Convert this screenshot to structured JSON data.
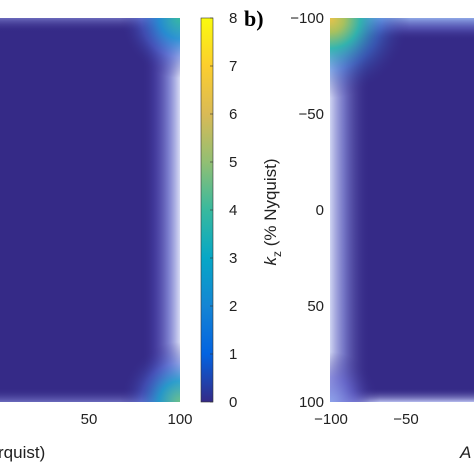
{
  "chart_data": [
    {
      "type": "heatmap",
      "panel": "",
      "xlabel": "k_y (% Nyquist)",
      "xlabel_visible": "rquist)",
      "ylabel": "",
      "x_ticks": [
        "50",
        "100"
      ],
      "xlim": [
        -100,
        100
      ],
      "ylim": [
        -100,
        100
      ],
      "value_description": "uniform low value (~0.5) in the interior; value rises toward the right edge, highest in the top-right and bottom-right corners",
      "interior_value": 0.5,
      "corner_values": {
        "top_right": 3.0,
        "bottom_right": 3.0
      },
      "colorbar": {
        "min": 0,
        "max": 8,
        "ticks": [
          "0",
          "1",
          "2",
          "3",
          "4",
          "5",
          "6",
          "7",
          "8"
        ],
        "colormap": "parula"
      }
    },
    {
      "type": "heatmap",
      "panel": "b)",
      "xlabel": "",
      "ylabel_main": "k",
      "ylabel_sub": "z",
      "ylabel_rest": " (% Nyquist)",
      "x_ticks": [
        "−100",
        "−50"
      ],
      "y_ticks": [
        "−100",
        "−50",
        "0",
        "50",
        "100"
      ],
      "xlim": [
        -100,
        100
      ],
      "ylim": [
        -100,
        100
      ],
      "partial_label": "A",
      "value_description": "uniform low value in the interior; value rises toward the top-left corner (up to ~6) and to a lesser extent along the left and top edges",
      "interior_value": 0.5,
      "corner_values": {
        "top_left": 6.0,
        "bottom_left": 1.5
      }
    }
  ],
  "colors": {
    "interior": "#352a87",
    "colormap_stops": [
      "#352a87",
      "#0363e1",
      "#1485d4",
      "#06a7c6",
      "#38b99e",
      "#92bf73",
      "#d9ba56",
      "#fcce2e",
      "#f9fb0e"
    ]
  }
}
